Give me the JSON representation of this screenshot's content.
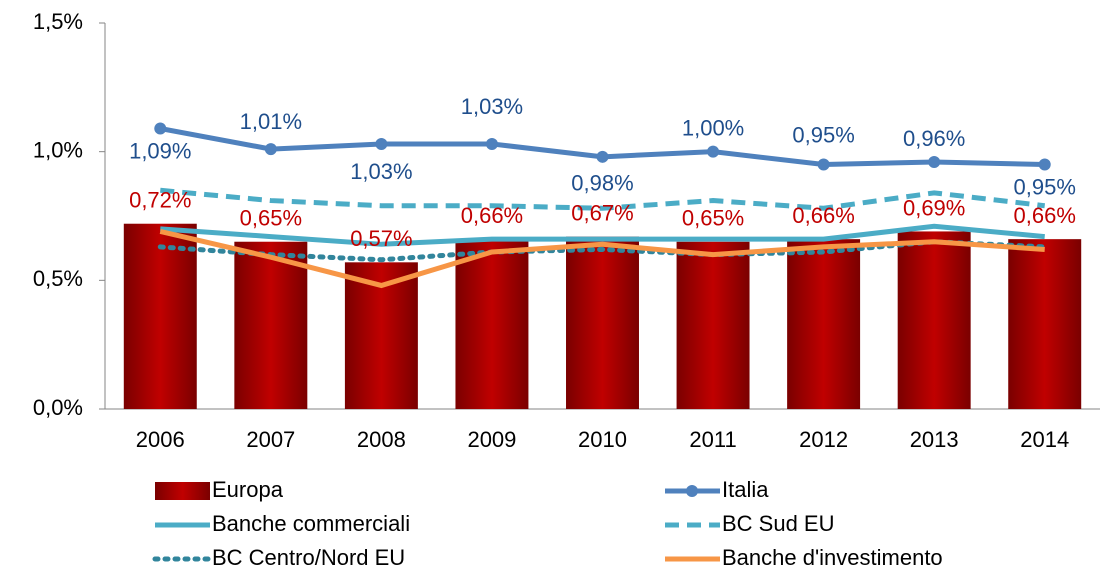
{
  "chart_data": {
    "type": "bar",
    "categories": [
      "2006",
      "2007",
      "2008",
      "2009",
      "2010",
      "2011",
      "2012",
      "2013",
      "2014"
    ],
    "ylim": [
      0,
      1.5
    ],
    "yticks": [
      {
        "value": 0,
        "label": "0,0%"
      },
      {
        "value": 0.5,
        "label": "0,5%"
      },
      {
        "value": 1,
        "label": "1,0%"
      },
      {
        "value": 1.5,
        "label": "1,5%"
      }
    ],
    "series": [
      {
        "name": "Europa",
        "type": "bar",
        "color": "#c00000",
        "values": [
          0.72,
          0.65,
          0.57,
          0.66,
          0.67,
          0.65,
          0.66,
          0.69,
          0.66
        ],
        "value_labels": [
          "0,72%",
          "0,65%",
          "0,57%",
          "0,66%",
          "0,67%",
          "0,65%",
          "0,66%",
          "0,69%",
          "0,66%"
        ]
      },
      {
        "name": "Italia",
        "type": "line",
        "color": "#4f81bd",
        "dash": "solid",
        "marker": true,
        "values": [
          1.09,
          1.01,
          1.03,
          1.03,
          0.98,
          1.0,
          0.95,
          0.96,
          0.95
        ],
        "value_labels": [
          "1,09%",
          "1,01%",
          "1,03%",
          "1,03%",
          "0,98%",
          "1,00%",
          "0,95%",
          "0,96%",
          "0,95%"
        ]
      },
      {
        "name": "Banche commerciali",
        "type": "line",
        "color": "#4bacc6",
        "dash": "solid",
        "values": [
          0.7,
          0.67,
          0.64,
          0.66,
          0.66,
          0.66,
          0.66,
          0.71,
          0.67
        ]
      },
      {
        "name": "BC Sud EU",
        "type": "line",
        "color": "#4bacc6",
        "dash": "dashed",
        "values": [
          0.85,
          0.81,
          0.79,
          0.79,
          0.78,
          0.81,
          0.78,
          0.84,
          0.79
        ]
      },
      {
        "name": "BC Centro/Nord EU",
        "type": "line",
        "color": "#31859c",
        "dash": "dotted",
        "values": [
          0.63,
          0.6,
          0.58,
          0.61,
          0.62,
          0.6,
          0.61,
          0.65,
          0.63
        ]
      },
      {
        "name": "Banche d'investimento",
        "type": "line",
        "color": "#f79646",
        "dash": "solid",
        "values": [
          0.69,
          0.59,
          0.48,
          0.61,
          0.64,
          0.6,
          0.63,
          0.65,
          0.62
        ]
      }
    ]
  }
}
